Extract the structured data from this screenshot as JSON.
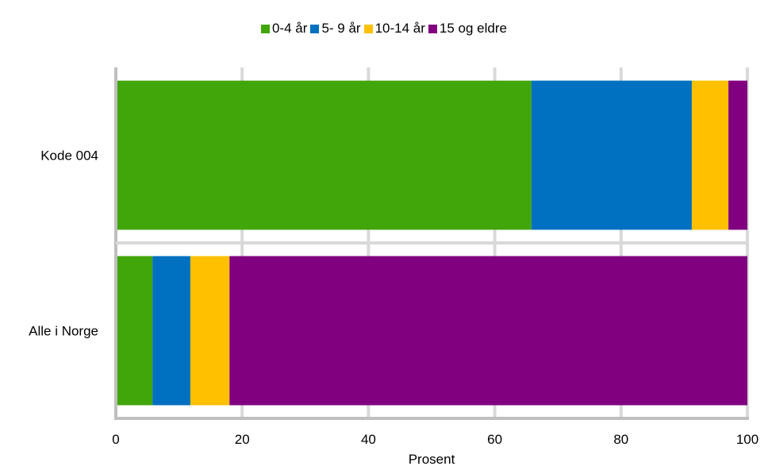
{
  "chart_data": {
    "type": "bar",
    "orientation": "horizontal",
    "stacked": true,
    "categories": [
      "Kode 004",
      "Alle i Norge"
    ],
    "series": [
      {
        "name": "0-4 år",
        "color": "#41a60a",
        "values": [
          65.8,
          5.8
        ]
      },
      {
        "name": "5- 9 år",
        "color": "#0070c0",
        "values": [
          25.4,
          6.0
        ]
      },
      {
        "name": "10-14 år",
        "color": "#ffc000",
        "values": [
          5.8,
          6.2
        ]
      },
      {
        "name": "15 og eldre",
        "color": "#800080",
        "values": [
          3.0,
          82.0
        ]
      }
    ],
    "xlabel": "Prosent",
    "ylabel": "",
    "xlim": [
      0,
      100
    ],
    "xticks": [
      0,
      20,
      40,
      60,
      80,
      100
    ],
    "grid": true,
    "legend_position": "top"
  }
}
